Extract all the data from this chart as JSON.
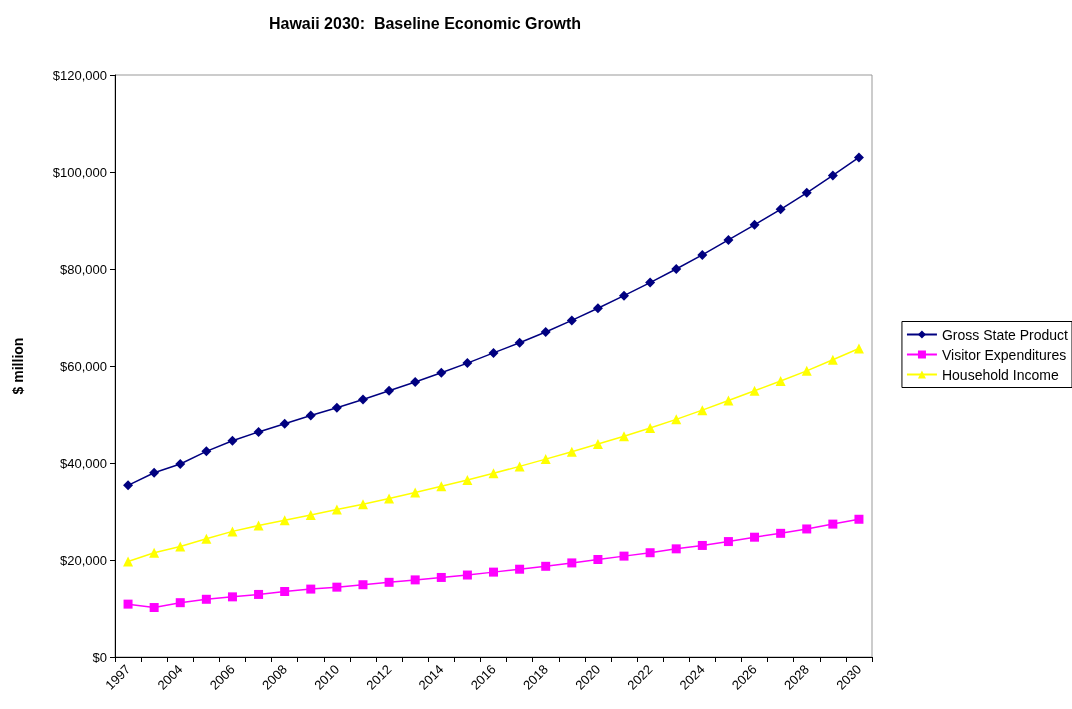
{
  "chart_data": {
    "type": "line",
    "title": "Hawaii 2030:  Baseline Economic Growth",
    "ylabel": "$ million",
    "categories": [
      "1997",
      null,
      "2004",
      null,
      "2006",
      null,
      "2008",
      null,
      "2010",
      null,
      "2012",
      null,
      "2014",
      null,
      "2016",
      null,
      "2018",
      null,
      "2020",
      null,
      "2022",
      null,
      "2024",
      null,
      "2026",
      null,
      "2028",
      null,
      "2030"
    ],
    "series": [
      {
        "name": "Gross State Product",
        "color": "#000080",
        "marker": "diamond",
        "values": [
          35400,
          38000,
          39800,
          42400,
          44600,
          46400,
          48100,
          49800,
          51400,
          53100,
          54900,
          56700,
          58600,
          60600,
          62700,
          64800,
          67000,
          69400,
          71900,
          74500,
          77200,
          80000,
          82900,
          86000,
          89100,
          92300,
          95700,
          99300,
          103000
        ]
      },
      {
        "name": "Visitor Expenditures",
        "color": "#ff00ff",
        "marker": "square",
        "values": [
          10900,
          10200,
          11200,
          11900,
          12400,
          12900,
          13500,
          14000,
          14400,
          14900,
          15400,
          15900,
          16400,
          16900,
          17500,
          18100,
          18700,
          19400,
          20100,
          20800,
          21500,
          22300,
          23000,
          23800,
          24700,
          25500,
          26400,
          27400,
          28400
        ]
      },
      {
        "name": "Household Income",
        "color": "#ffff00",
        "marker": "triangle",
        "values": [
          19700,
          21500,
          22800,
          24400,
          25900,
          27100,
          28200,
          29300,
          30400,
          31500,
          32700,
          33900,
          35200,
          36500,
          37900,
          39300,
          40800,
          42300,
          43900,
          45500,
          47200,
          49000,
          50900,
          52900,
          54900,
          56900,
          59000,
          61300,
          63600
        ]
      }
    ],
    "ylim": [
      0,
      120000
    ],
    "yticks": [
      {
        "value": 0,
        "label": "$0"
      },
      {
        "value": 20000,
        "label": "$20,000"
      },
      {
        "value": 40000,
        "label": "$40,000"
      },
      {
        "value": 60000,
        "label": "$60,000"
      },
      {
        "value": 80000,
        "label": "$80,000"
      },
      {
        "value": 100000,
        "label": "$100,000"
      },
      {
        "value": 120000,
        "label": "$120,000"
      }
    ],
    "grid": false,
    "legend": "right",
    "line_style": "solid"
  }
}
